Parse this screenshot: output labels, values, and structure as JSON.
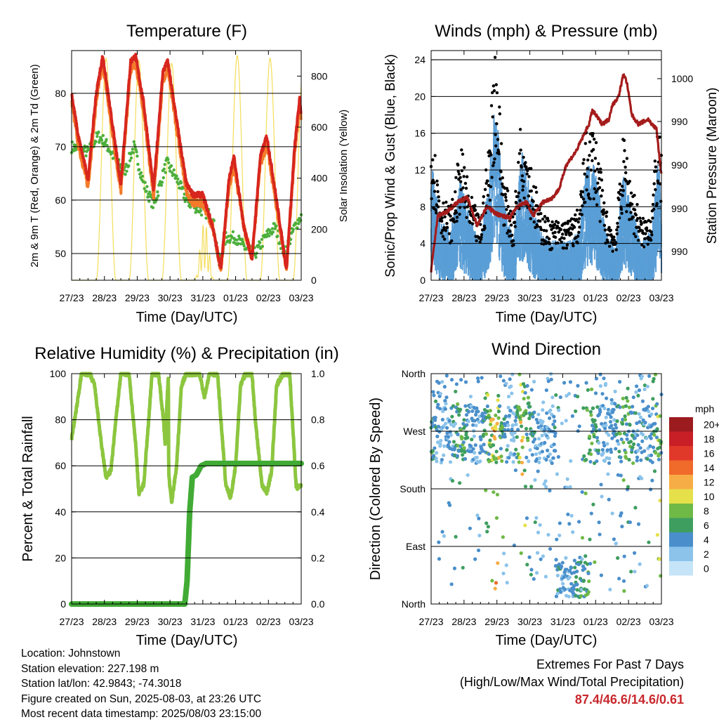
{
  "colors": {
    "temp_2m": "#d7261e",
    "temp_9m": "#f47b2a",
    "dewpoint": "#4daf3c",
    "solar": "#f4dd5a",
    "wind_gust": "#000000",
    "wind_speed": "#5a9ed6",
    "pressure": "#a51c1c",
    "rh": "#8cc63f",
    "precip": "#41ab35"
  },
  "charts": {
    "temp": {
      "title": "Temperature (F)",
      "xlabel": "Time (Day/UTC)",
      "ylabel_left": "2m & 9m T (Red, Orange) & 2m Td (Green)",
      "ylabel_right": "Solar Insolation (Yellow)",
      "xticks": [
        "27/23",
        "28/23",
        "29/23",
        "30/23",
        "31/23",
        "01/23",
        "02/23",
        "03/23"
      ],
      "yticks_left": [
        "50",
        "60",
        "70",
        "80"
      ],
      "yticks_right": [
        "0",
        "200",
        "400",
        "600",
        "800"
      ]
    },
    "wind": {
      "title": "Winds (mph) & Pressure (mb)",
      "xlabel": "Time (Day/UTC)",
      "ylabel_left": "Sonic/Prop Wind & Gust (Blue, Black)",
      "ylabel_right": "Station Pressure (Maroon)",
      "xticks": [
        "27/23",
        "28/23",
        "29/23",
        "30/23",
        "31/23",
        "01/23",
        "02/23",
        "03/23"
      ],
      "yticks_left": [
        "0",
        "4",
        "8",
        "12",
        "16",
        "20",
        "24"
      ],
      "yticks_right": [
        "990",
        "990",
        "990",
        "990",
        "1000",
        "1000"
      ]
    },
    "rh": {
      "title": "Relative Humidity (%) & Precipitation (in)",
      "xlabel": "Time (Day/UTC)",
      "ylabel_left": "Percent & Total Rainfall",
      "xticks": [
        "27/23",
        "28/23",
        "29/23",
        "30/23",
        "31/23",
        "01/23",
        "02/23",
        "03/23"
      ],
      "yticks_left": [
        "0",
        "20",
        "40",
        "60",
        "80",
        "100"
      ],
      "yticks_right": [
        "0.0",
        "0.2",
        "0.4",
        "0.6",
        "0.8",
        "1.0"
      ]
    },
    "dir": {
      "title": "Wind Direction",
      "xlabel": "Time (Day/UTC)",
      "ylabel_left": "Direction (Colored By Speed)",
      "xticks": [
        "27/23",
        "28/23",
        "29/23",
        "30/23",
        "31/23",
        "01/23",
        "02/23",
        "03/23"
      ],
      "yticks_left": [
        "North",
        "East",
        "South",
        "West",
        "North"
      ],
      "legend_title": "mph",
      "legend_labels": [
        "0",
        "2",
        "4",
        "6",
        "8",
        "10",
        "12",
        "14",
        "16",
        "18",
        "20+"
      ],
      "legend_colors": [
        "#c6e4f7",
        "#8bc3ea",
        "#4a8fcb",
        "#3e9e5f",
        "#6fb946",
        "#e6e04a",
        "#f7ad45",
        "#f06a2a",
        "#e0392a",
        "#c81e25",
        "#9b1b1f"
      ]
    }
  },
  "chart_data": [
    {
      "type": "line",
      "title": "Temperature (F)",
      "xlabel": "Time (Day/UTC)",
      "x": [
        "27/23",
        "28/23",
        "29/23",
        "30/23",
        "31/23",
        "01/23",
        "02/23",
        "03/23"
      ],
      "ylim": [
        45,
        88
      ],
      "y2lim": [
        0,
        900
      ],
      "series": [
        {
          "name": "2m T (Red)",
          "values": [
            80,
            86,
            87,
            86,
            61,
            69,
            72,
            77
          ]
        },
        {
          "name": "9m T (Orange)",
          "values": [
            78,
            85,
            85,
            83,
            60,
            66,
            68,
            75
          ]
        },
        {
          "name": "2m Td (Green)",
          "values": [
            70,
            72,
            68,
            66,
            58,
            52,
            55,
            57
          ]
        },
        {
          "name": "Solar Insolation (Yellow)",
          "values": [
            0,
            860,
            850,
            840,
            220,
            870,
            860,
            800
          ]
        }
      ]
    },
    {
      "type": "line",
      "title": "Winds (mph) & Pressure (mb)",
      "xlabel": "Time (Day/UTC)",
      "x": [
        "27/23",
        "28/23",
        "29/23",
        "30/23",
        "31/23",
        "01/23",
        "02/23",
        "03/23"
      ],
      "ylim": [
        0,
        25
      ],
      "series": [
        {
          "name": "Gust (Black)",
          "values": [
            15,
            14,
            23,
            19,
            13,
            15,
            13,
            17
          ]
        },
        {
          "name": "Sonic/Prop Wind (Blue)",
          "values": [
            8,
            8,
            15,
            12,
            6,
            8,
            8,
            11
          ]
        },
        {
          "name": "Station Pressure (Maroon)",
          "values": [
            986,
            990,
            989,
            990,
            993,
            998,
            996,
            991
          ]
        }
      ]
    },
    {
      "type": "line",
      "title": "Relative Humidity (%) & Precipitation (in)",
      "xlabel": "Time (Day/UTC)",
      "x": [
        "27/23",
        "28/23",
        "29/23",
        "30/23",
        "31/23",
        "01/23",
        "02/23",
        "03/23"
      ],
      "ylim": [
        0,
        100
      ],
      "y2lim": [
        0,
        1.0
      ],
      "series": [
        {
          "name": "Relative Humidity",
          "values": [
            72,
            100,
            100,
            100,
            100,
            100,
            100,
            55
          ]
        },
        {
          "name": "Total Rainfall",
          "values": [
            0,
            0,
            0,
            0,
            0.6,
            0.61,
            0.61,
            0.61
          ]
        }
      ]
    },
    {
      "type": "scatter",
      "title": "Wind Direction",
      "xlabel": "Time (Day/UTC)",
      "x": [
        "27/23",
        "28/23",
        "29/23",
        "30/23",
        "31/23",
        "01/23",
        "02/23",
        "03/23"
      ],
      "yticks": [
        "North",
        "East",
        "South",
        "West",
        "North"
      ],
      "colorbar": {
        "title": "mph",
        "labels": [
          "0",
          "2",
          "4",
          "6",
          "8",
          "10",
          "12",
          "14",
          "16",
          "18",
          "20+"
        ]
      }
    }
  ],
  "info": {
    "location": "Location: Johnstown",
    "elevation": "Station elevation: 227.198 m",
    "latlon": "Station lat/lon: 42.9843; -74.3018",
    "created": "Figure created on Sun, 2025-08-03, at 23:26 UTC",
    "recent": "Most recent data timestamp: 2025/08/03 23:15:00"
  },
  "extremes": {
    "line1": "Extremes For Past 7 Days",
    "line2": "(High/Low/Max Wind/Total Precipitation)",
    "values": "87.4/46.6/14.6/0.61"
  }
}
